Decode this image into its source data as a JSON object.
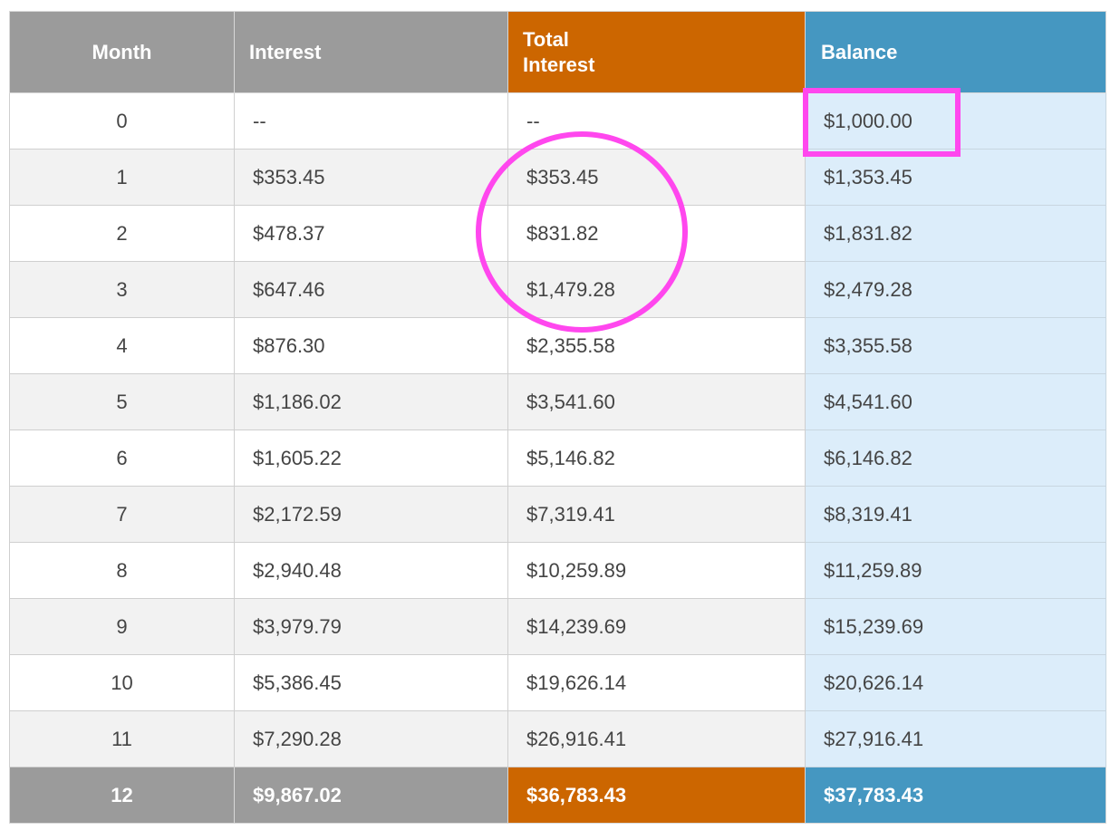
{
  "headers": {
    "month": "Month",
    "interest": "Interest",
    "total_interest": "Total\nInterest",
    "balance": "Balance"
  },
  "rows": [
    {
      "month": "0",
      "interest": "--",
      "total_interest": "--",
      "balance": "$1,000.00"
    },
    {
      "month": "1",
      "interest": "$353.45",
      "total_interest": "$353.45",
      "balance": "$1,353.45"
    },
    {
      "month": "2",
      "interest": "$478.37",
      "total_interest": "$831.82",
      "balance": "$1,831.82"
    },
    {
      "month": "3",
      "interest": "$647.46",
      "total_interest": "$1,479.28",
      "balance": "$2,479.28"
    },
    {
      "month": "4",
      "interest": "$876.30",
      "total_interest": "$2,355.58",
      "balance": "$3,355.58"
    },
    {
      "month": "5",
      "interest": "$1,186.02",
      "total_interest": "$3,541.60",
      "balance": "$4,541.60"
    },
    {
      "month": "6",
      "interest": "$1,605.22",
      "total_interest": "$5,146.82",
      "balance": "$6,146.82"
    },
    {
      "month": "7",
      "interest": "$2,172.59",
      "total_interest": "$7,319.41",
      "balance": "$8,319.41"
    },
    {
      "month": "8",
      "interest": "$2,940.48",
      "total_interest": "$10,259.89",
      "balance": "$11,259.89"
    },
    {
      "month": "9",
      "interest": "$3,979.79",
      "total_interest": "$14,239.69",
      "balance": "$15,239.69"
    },
    {
      "month": "10",
      "interest": "$5,386.45",
      "total_interest": "$19,626.14",
      "balance": "$20,626.14"
    },
    {
      "month": "11",
      "interest": "$7,290.28",
      "total_interest": "$26,916.41",
      "balance": "$27,916.41"
    }
  ],
  "footer": {
    "month": "12",
    "interest": "$9,867.02",
    "total_interest": "$36,783.43",
    "balance": "$37,783.43"
  },
  "colors": {
    "header_gray": "#9b9b9b",
    "header_orange": "#cc6600",
    "header_blue": "#4597c1",
    "balance_cell_bg": "#dcedfa",
    "annotation_magenta": "#ff47ee"
  },
  "annotations": [
    {
      "type": "rectangle",
      "target": "balance row 0"
    },
    {
      "type": "circle",
      "target": "total interest rows 1-3"
    }
  ]
}
